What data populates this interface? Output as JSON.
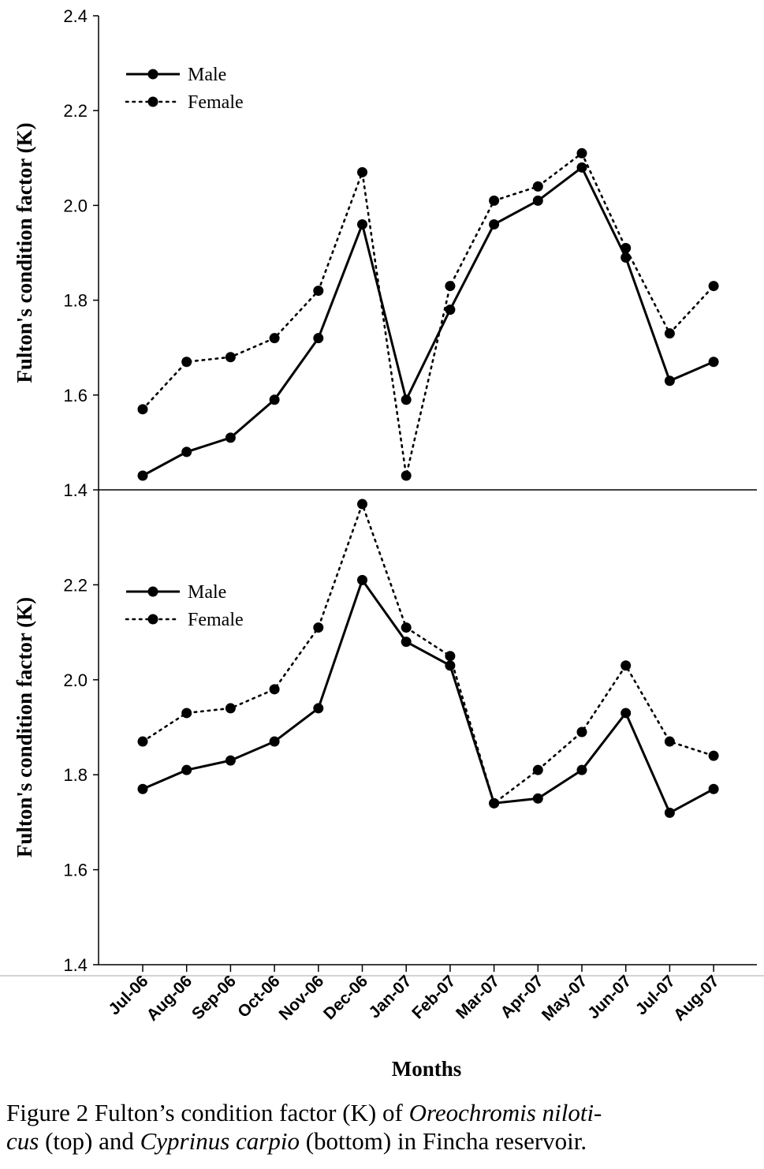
{
  "caption": {
    "part1": "Figure 2 Fulton’s condition factor (K) of ",
    "species1": "Oreochromis niloti-",
    "species1b": "cus",
    "part2": " (top) and ",
    "species2": "Cyprinus carpio",
    "part3": " (bottom) in Fincha reservoir."
  },
  "chart_data": [
    {
      "type": "line",
      "panel": "top",
      "species": "Oreochromis niloticus",
      "title": "",
      "xlabel": "",
      "ylabel": "Fulton's condition factor (K)",
      "ylim": [
        1.4,
        2.4
      ],
      "yticks": [
        "1.4",
        "1.6",
        "1.8",
        "2.0",
        "2.2",
        "2.4"
      ],
      "categories": [
        "Jul-06",
        "Aug-06",
        "Sep-06",
        "Oct-06",
        "Nov-06",
        "Dec-06",
        "Jan-07",
        "Feb-07",
        "Mar-07",
        "Apr-07",
        "May-07",
        "Jun-07",
        "Jul-07",
        "Aug-07"
      ],
      "legend_position": "top-left",
      "grid": false,
      "series": [
        {
          "name": "Male",
          "style": "solid",
          "values": [
            1.43,
            1.48,
            1.51,
            1.59,
            1.72,
            1.96,
            1.59,
            1.78,
            1.96,
            2.01,
            2.08,
            1.89,
            1.63,
            1.67
          ]
        },
        {
          "name": "Female",
          "style": "dotted",
          "values": [
            1.57,
            1.67,
            1.68,
            1.72,
            1.82,
            2.07,
            1.43,
            1.83,
            2.01,
            2.04,
            2.11,
            1.91,
            1.73,
            1.83
          ]
        }
      ]
    },
    {
      "type": "line",
      "panel": "bottom",
      "species": "Cyprinus carpio",
      "title": "",
      "xlabel": "Months",
      "ylabel": "Fulton's condition factor (K)",
      "ylim": [
        1.4,
        2.4
      ],
      "yticks": [
        "1.4",
        "1.6",
        "1.8",
        "2.0",
        "2.2"
      ],
      "categories": [
        "Jul-06",
        "Aug-06",
        "Sep-06",
        "Oct-06",
        "Nov-06",
        "Dec-06",
        "Jan-07",
        "Feb-07",
        "Mar-07",
        "Apr-07",
        "May-07",
        "Jun-07",
        "Jul-07",
        "Aug-07"
      ],
      "legend_position": "top-left",
      "grid": false,
      "series": [
        {
          "name": "Male",
          "style": "solid",
          "values": [
            1.77,
            1.81,
            1.83,
            1.87,
            1.94,
            2.21,
            2.08,
            2.03,
            1.74,
            1.75,
            1.81,
            1.93,
            1.72,
            1.77
          ]
        },
        {
          "name": "Female",
          "style": "dotted",
          "values": [
            1.87,
            1.93,
            1.94,
            1.98,
            2.11,
            2.37,
            2.11,
            2.05,
            1.74,
            1.81,
            1.89,
            2.03,
            1.87,
            1.84
          ]
        }
      ]
    }
  ]
}
